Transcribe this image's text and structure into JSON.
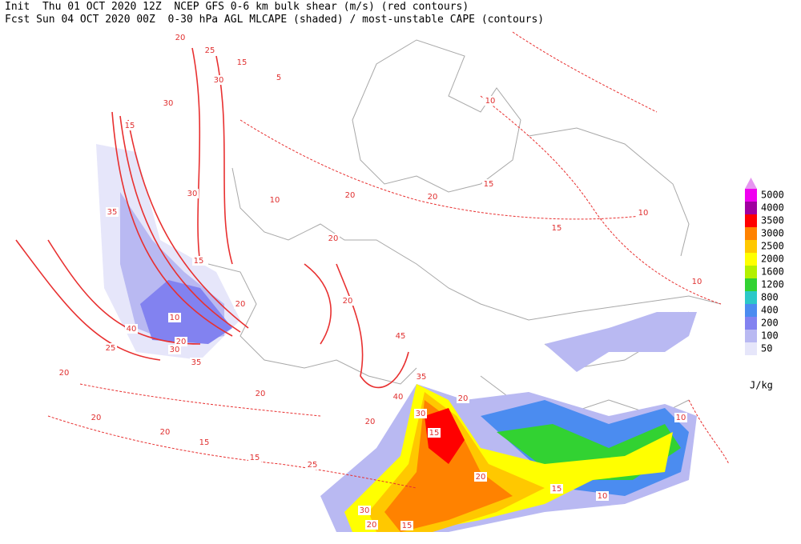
{
  "header": {
    "line1": "Init  Thu 01 OCT 2020 12Z  NCEP GFS 0-6 km bulk shear (m/s) (red contours)",
    "line2": "Fcst Sun 04 OCT 2020 00Z  0-30 hPa AGL MLCAPE (shaded) / most-unstable CAPE (contours)"
  },
  "legend": {
    "levels": [
      50,
      100,
      200,
      400,
      800,
      1200,
      1600,
      2000,
      2500,
      3000,
      3500,
      4000,
      5000
    ],
    "colors": [
      "#e6e6fa",
      "#b9b9f2",
      "#8282f0",
      "#4b8cf0",
      "#2cc8c8",
      "#32d232",
      "#b4f000",
      "#ffff00",
      "#ffc800",
      "#ff8200",
      "#ff0000",
      "#a000a0",
      "#f000f0"
    ],
    "unit": "J/kg"
  },
  "contour_labels": [
    20,
    25,
    15,
    30,
    5,
    30,
    15,
    30,
    35,
    10,
    15,
    20,
    20,
    20,
    15,
    15,
    10,
    10,
    10,
    10,
    40,
    20,
    30,
    35,
    25,
    20,
    20,
    20,
    15,
    15,
    25,
    20,
    20,
    20,
    35,
    30,
    20,
    15,
    20,
    15,
    10,
    10,
    30,
    20,
    15,
    40,
    20,
    45
  ]
}
